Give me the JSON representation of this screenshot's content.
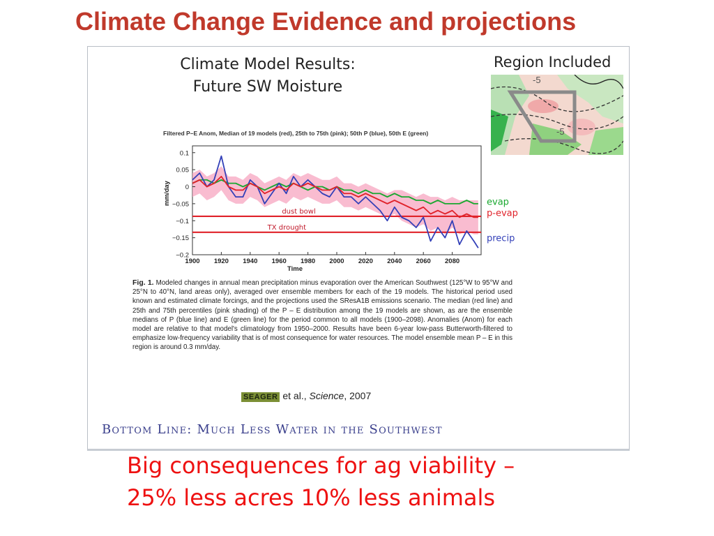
{
  "slide": {
    "title": "Climate Change Evidence and projections",
    "conclusion_line1": "Big consequences for ag viability –",
    "conclusion_line2": "25% less acres 10% less animals"
  },
  "figure": {
    "heading_line1": "Climate Model Results:",
    "heading_line2": "Future SW Moisture",
    "region_label": "Region Included",
    "region_contour_label_top": "-5",
    "region_contour_label_box": "-5",
    "plot_title": "Filtered P–E Anom, Median of 19 models (red), 25th to 75th (pink); 50th P (blue), 50th E (green)",
    "caption_fig_label": "Fig. 1.",
    "caption_text": "Modeled changes in annual mean precipitation minus evaporation over the American Southwest (125°W to 95°W and 25°N to 40°N, land areas only), averaged over ensemble members for each of the 19 models. The historical period used known and estimated climate forcings, and the projections used the SResA1B emissions scenario. The median (red line) and 25th and 75th percentiles (pink shading) of the P – E distribution among the 19 models are shown, as are the ensemble medians of P (blue line) and E (green line) for the period common to all models (1900–2098). Anomalies (Anom) for each model are relative to that model's climatology from 1950–2000. Results have been 6-year low-pass Butterworth-filtered to emphasize low-frequency variability that is of most consequence for water resources. The model ensemble mean P – E in this region is around 0.3 mm/day.",
    "citation_author": "SEAGER",
    "citation_rest": " et al., ",
    "citation_journal": "Science",
    "citation_year": ", 2007",
    "bottom_line": "Bottom Line: Much Less Water in the Southwest"
  },
  "chart_data": {
    "type": "line",
    "title": "Filtered P–E Anom, Median of 19 models (red), 25th to 75th (pink); 50th P (blue), 50th E (green)",
    "xlabel": "Time",
    "ylabel": "mm/day",
    "xlim": [
      1900,
      2100
    ],
    "ylim": [
      -0.2,
      0.12
    ],
    "x_ticks": [
      1900,
      1920,
      1940,
      1960,
      1980,
      2000,
      2020,
      2040,
      2060,
      2080
    ],
    "y_ticks": [
      0.1,
      0.05,
      0,
      -0.05,
      -0.1,
      -0.15,
      -0.2
    ],
    "y_tick_labels": [
      "0.1",
      "0.05",
      "0",
      "−0.05",
      "−0.1",
      "−0.15",
      "−0.2"
    ],
    "x": [
      1900,
      1905,
      1910,
      1915,
      1920,
      1925,
      1930,
      1935,
      1940,
      1945,
      1950,
      1955,
      1960,
      1965,
      1970,
      1975,
      1980,
      1985,
      1990,
      1995,
      2000,
      2005,
      2010,
      2015,
      2020,
      2025,
      2030,
      2035,
      2040,
      2045,
      2050,
      2055,
      2060,
      2065,
      2070,
      2075,
      2080,
      2085,
      2090,
      2095,
      2098
    ],
    "series": [
      {
        "name": "evap",
        "color": "#1aa830",
        "values": [
          0.01,
          0.02,
          0.02,
          0.01,
          0.02,
          0.01,
          0.01,
          0.0,
          0.01,
          0.0,
          -0.01,
          0.0,
          0.01,
          0.0,
          0.01,
          0.0,
          -0.01,
          0.0,
          0.0,
          -0.01,
          0.0,
          -0.01,
          -0.01,
          -0.02,
          -0.01,
          -0.02,
          -0.02,
          -0.03,
          -0.02,
          -0.03,
          -0.03,
          -0.04,
          -0.04,
          -0.05,
          -0.04,
          -0.05,
          -0.05,
          -0.05,
          -0.04,
          -0.05,
          -0.05
        ]
      },
      {
        "name": "p-evap",
        "color": "#e0222a",
        "values": [
          0.01,
          0.02,
          0.0,
          0.01,
          0.03,
          0.0,
          -0.01,
          -0.01,
          0.01,
          0.0,
          -0.02,
          -0.01,
          0.0,
          -0.01,
          0.01,
          0.0,
          0.01,
          0.0,
          -0.01,
          -0.01,
          0.0,
          -0.02,
          -0.02,
          -0.03,
          -0.02,
          -0.03,
          -0.04,
          -0.05,
          -0.04,
          -0.05,
          -0.06,
          -0.07,
          -0.06,
          -0.08,
          -0.07,
          -0.08,
          -0.07,
          -0.09,
          -0.08,
          -0.09,
          -0.09
        ]
      },
      {
        "name": "precip",
        "color": "#3340b8",
        "values": [
          0.02,
          0.04,
          0.0,
          0.02,
          0.09,
          0.0,
          -0.03,
          -0.03,
          0.02,
          0.0,
          -0.05,
          -0.02,
          0.01,
          -0.02,
          0.03,
          0.0,
          0.02,
          0.0,
          -0.02,
          -0.03,
          0.0,
          -0.03,
          -0.03,
          -0.05,
          -0.03,
          -0.05,
          -0.07,
          -0.1,
          -0.06,
          -0.09,
          -0.1,
          -0.12,
          -0.09,
          -0.16,
          -0.12,
          -0.15,
          -0.1,
          -0.17,
          -0.13,
          -0.16,
          -0.18
        ]
      }
    ],
    "band": {
      "name": "25th to 75th",
      "color": "#f7a6c0",
      "lower": [
        -0.03,
        -0.02,
        -0.04,
        -0.03,
        -0.01,
        -0.04,
        -0.05,
        -0.05,
        -0.03,
        -0.04,
        -0.06,
        -0.05,
        -0.04,
        -0.05,
        -0.03,
        -0.04,
        -0.03,
        -0.04,
        -0.05,
        -0.05,
        -0.04,
        -0.06,
        -0.06,
        -0.07,
        -0.06,
        -0.07,
        -0.08,
        -0.09,
        -0.08,
        -0.1,
        -0.11,
        -0.12,
        -0.11,
        -0.13,
        -0.12,
        -0.14,
        -0.12,
        -0.14,
        -0.13,
        -0.14,
        -0.14
      ],
      "upper": [
        0.04,
        0.05,
        0.03,
        0.04,
        0.06,
        0.03,
        0.03,
        0.02,
        0.04,
        0.03,
        0.01,
        0.02,
        0.03,
        0.02,
        0.04,
        0.03,
        0.04,
        0.03,
        0.02,
        0.02,
        0.03,
        0.01,
        0.01,
        0.0,
        0.01,
        0.0,
        -0.01,
        -0.02,
        -0.01,
        -0.01,
        -0.02,
        -0.03,
        -0.02,
        -0.03,
        -0.03,
        -0.04,
        -0.03,
        -0.04,
        -0.04,
        -0.04,
        -0.04
      ]
    },
    "reference_lines": [
      {
        "label": "dust bowl",
        "y": -0.087,
        "color": "#e0222a"
      },
      {
        "label": "TX drought",
        "y": -0.134,
        "color": "#e0222a"
      }
    ],
    "legend_placement": "right"
  }
}
